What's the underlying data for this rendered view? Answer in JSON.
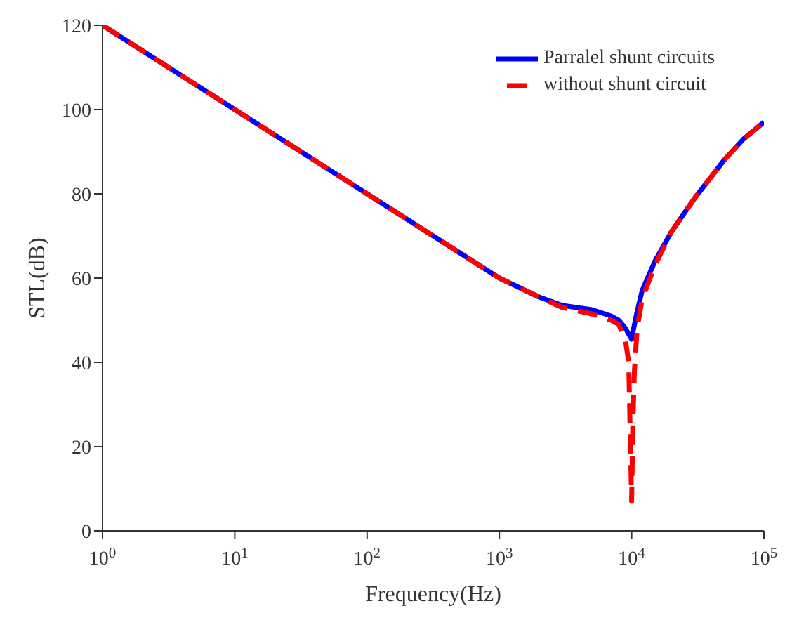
{
  "chart_data": {
    "type": "line",
    "xlabel": "Frequency(Hz)",
    "ylabel": "STL(dB)",
    "log": "x",
    "grid": false,
    "legend": "top right",
    "xlim": [
      1,
      100000
    ],
    "ylim": [
      0,
      120
    ],
    "xticks": [
      {
        "value": 1,
        "label": "10$^{0}$"
      },
      {
        "value": 10,
        "label": "10$^{1}$"
      },
      {
        "value": 100,
        "label": "10$^{2}$"
      },
      {
        "value": 1000,
        "label": "10$^{3}$"
      },
      {
        "value": 10000,
        "label": "10$^{4}$"
      },
      {
        "value": 100000,
        "label": "10$^{5}$"
      }
    ],
    "yticks": [
      0,
      20,
      40,
      60,
      80,
      100,
      120
    ],
    "series": [
      {
        "name": "Parralel shunt circuits",
        "color": "#0000ff",
        "line_style": "solid",
        "x": [
          1,
          10,
          100,
          1000,
          2000,
          3000,
          5000,
          7000,
          8000,
          9000,
          10000,
          10500,
          11000,
          12000,
          15000,
          20000,
          30000,
          50000,
          70000,
          100000
        ],
        "values": [
          120,
          100,
          80,
          60,
          55.5,
          53.5,
          52.5,
          51,
          50,
          48,
          45.5,
          49,
          52,
          57,
          64,
          71,
          79,
          88,
          93,
          97
        ]
      },
      {
        "name": "without shunt circuit",
        "color": "#ff0000",
        "line_style": "dashed",
        "x": [
          1,
          10,
          100,
          1000,
          2000,
          3000,
          5000,
          7000,
          8000,
          9000,
          9500,
          9800,
          10000,
          10200,
          10500,
          11000,
          12000,
          15000,
          20000,
          30000,
          50000,
          70000,
          100000
        ],
        "values": [
          120,
          100,
          80,
          60,
          55.5,
          53,
          51.5,
          50,
          49,
          45,
          40,
          20,
          7,
          25,
          38,
          48,
          55,
          63,
          71,
          79,
          88,
          93,
          97
        ]
      }
    ]
  }
}
